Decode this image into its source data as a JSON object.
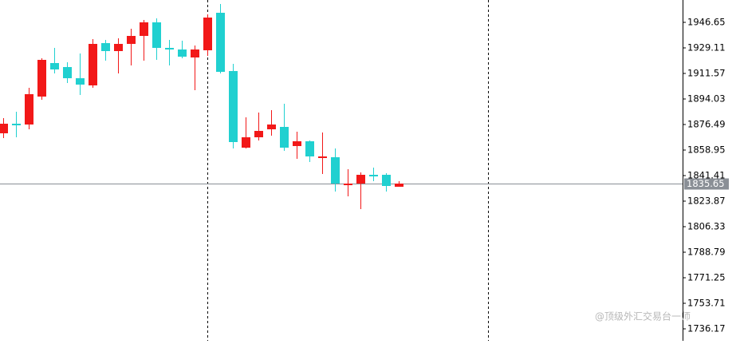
{
  "chart_data": {
    "type": "candlestick",
    "ylim": [
      1727.95,
      1962.0
    ],
    "yticks": [
      1736.17,
      1753.71,
      1771.25,
      1788.79,
      1806.33,
      1823.87,
      1841.41,
      1858.95,
      1876.49,
      1894.03,
      1911.57,
      1929.11,
      1946.65
    ],
    "current_price": 1835.65,
    "up_color": "#f21818",
    "down_color": "#20d0d0",
    "watermark": "@顶级外汇交易台一师",
    "candles": [
      {
        "open": 1870.46,
        "high": 1880.88,
        "low": 1867.17,
        "close": 1877.04
      },
      {
        "open": 1877.04,
        "high": 1885.26,
        "low": 1867.72,
        "close": 1875.94
      },
      {
        "open": 1876.49,
        "high": 1901.71,
        "low": 1873.2,
        "close": 1897.32
      },
      {
        "open": 1895.68,
        "high": 1921.98,
        "low": 1893.48,
        "close": 1920.89
      },
      {
        "open": 1918.7,
        "high": 1929.11,
        "low": 1911.57,
        "close": 1914.31
      },
      {
        "open": 1915.96,
        "high": 1919.24,
        "low": 1904.99,
        "close": 1908.28
      },
      {
        "open": 1908.28,
        "high": 1925.27,
        "low": 1896.77,
        "close": 1903.9
      },
      {
        "open": 1903.35,
        "high": 1935.14,
        "low": 1901.71,
        "close": 1931.85
      },
      {
        "open": 1932.4,
        "high": 1934.59,
        "low": 1920.34,
        "close": 1926.92
      },
      {
        "open": 1926.92,
        "high": 1935.69,
        "low": 1911.57,
        "close": 1931.85
      },
      {
        "open": 1931.85,
        "high": 1942.27,
        "low": 1917.05,
        "close": 1937.33
      },
      {
        "open": 1937.33,
        "high": 1948.29,
        "low": 1920.34,
        "close": 1946.65
      },
      {
        "open": 1946.65,
        "high": 1949.39,
        "low": 1920.89,
        "close": 1929.11
      },
      {
        "open": 1929.11,
        "high": 1934.59,
        "low": 1917.05,
        "close": 1928.01
      },
      {
        "open": 1928.01,
        "high": 1934.04,
        "low": 1921.98,
        "close": 1923.08
      },
      {
        "open": 1922.53,
        "high": 1930.75,
        "low": 1900.06,
        "close": 1928.01
      },
      {
        "open": 1927.47,
        "high": 1952.13,
        "low": 1923.63,
        "close": 1949.94
      },
      {
        "open": 1953.23,
        "high": 1959.26,
        "low": 1911.57,
        "close": 1912.67
      },
      {
        "open": 1913.21,
        "high": 1918.15,
        "low": 1860.05,
        "close": 1864.43
      },
      {
        "open": 1860.59,
        "high": 1881.42,
        "low": 1860.05,
        "close": 1867.72
      },
      {
        "open": 1867.72,
        "high": 1884.71,
        "low": 1865.53,
        "close": 1872.1
      },
      {
        "open": 1873.2,
        "high": 1886.36,
        "low": 1868.82,
        "close": 1876.49
      },
      {
        "open": 1874.85,
        "high": 1890.74,
        "low": 1858.4,
        "close": 1860.59
      },
      {
        "open": 1861.69,
        "high": 1871.56,
        "low": 1852.92,
        "close": 1864.98
      },
      {
        "open": 1864.98,
        "high": 1865.53,
        "low": 1850.73,
        "close": 1854.57
      },
      {
        "open": 1853.47,
        "high": 1871.01,
        "low": 1842.51,
        "close": 1854.57
      },
      {
        "open": 1854.02,
        "high": 1860.05,
        "low": 1830.45,
        "close": 1835.93
      },
      {
        "open": 1835.38,
        "high": 1845.79,
        "low": 1827.16,
        "close": 1835.93
      },
      {
        "open": 1835.93,
        "high": 1843.6,
        "low": 1818.39,
        "close": 1841.96
      },
      {
        "open": 1841.96,
        "high": 1846.89,
        "low": 1837.57,
        "close": 1840.86
      },
      {
        "open": 1841.96,
        "high": 1843.05,
        "low": 1830.45,
        "close": 1834.29
      },
      {
        "open": 1833.74,
        "high": 1837.57,
        "low": 1833.74,
        "close": 1835.93
      }
    ]
  }
}
